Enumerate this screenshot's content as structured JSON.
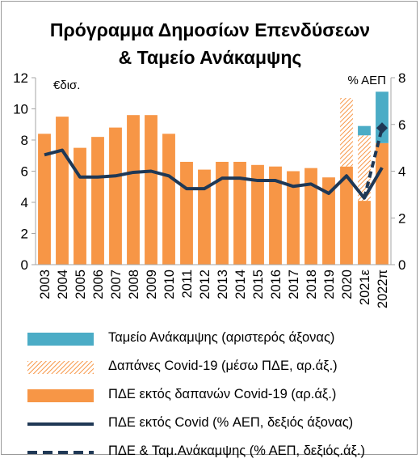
{
  "title_line1": "Πρόγραμμα Δημοσίων Επενδύσεων",
  "title_line2": "& Ταμείο Ανάκαμψης",
  "chart_data": {
    "type": "bar",
    "categories": [
      "2003",
      "2004",
      "2005",
      "2006",
      "2007",
      "2008",
      "2009",
      "2010",
      "2011",
      "2012",
      "2013",
      "2014",
      "2015",
      "2016",
      "2017",
      "2018",
      "2019",
      "2020",
      "2021ε",
      "2022π"
    ],
    "left_axis": {
      "label": "€δισ.",
      "range": [
        0,
        12
      ],
      "ticks": [
        0,
        2,
        4,
        6,
        8,
        10,
        12
      ]
    },
    "right_axis": {
      "label": "% ΑΕΠ",
      "range": [
        0,
        8
      ],
      "ticks": [
        0,
        2,
        4,
        6,
        8
      ]
    },
    "series": [
      {
        "name": "Ταμείο Ανάκαμψης (αριστερός άξονας)",
        "kind": "stacked-bar",
        "axis": "left",
        "color": "#4bacc6",
        "values": [
          0,
          0,
          0,
          0,
          0,
          0,
          0,
          0,
          0,
          0,
          0,
          0,
          0,
          0,
          0,
          0,
          0,
          0,
          0.6,
          3.3
        ]
      },
      {
        "name": "Δαπάνες Covid-19 (μέσω ΠΔΕ, αρ.άξ.)",
        "kind": "stacked-bar",
        "axis": "left",
        "color": "#f79646",
        "pattern": "hatch",
        "values": [
          0,
          0,
          0,
          0,
          0,
          0,
          0,
          0,
          0,
          0,
          0,
          0,
          0,
          0,
          0,
          0,
          0,
          4.4,
          4.2,
          0
        ]
      },
      {
        "name": "ΠΔΕ εκτός δαπανών Covid-19 (αρ.άξ.)",
        "kind": "stacked-bar",
        "axis": "left",
        "color": "#f79646",
        "values": [
          8.4,
          9.5,
          7.5,
          8.2,
          8.8,
          9.6,
          9.6,
          8.4,
          6.6,
          6.1,
          6.6,
          6.6,
          6.4,
          6.3,
          6.0,
          6.2,
          5.6,
          6.3,
          4.1,
          7.8
        ]
      },
      {
        "name": "ΠΔΕ εκτός Covid (% ΑΕΠ, δεξιός άξονας)",
        "kind": "line",
        "axis": "right",
        "color": "#1f3855",
        "values": [
          4.7,
          4.9,
          3.75,
          3.75,
          3.8,
          3.95,
          4.0,
          3.8,
          3.25,
          3.25,
          3.7,
          3.7,
          3.6,
          3.6,
          3.35,
          3.45,
          3.05,
          3.8,
          2.85,
          4.15
        ]
      },
      {
        "name": "ΠΔΕ & Ταμ.Ανάκαμψης (% ΑΕΠ, δεξιός.άξ.)",
        "kind": "dashed-line",
        "axis": "right",
        "color": "#1f3855",
        "values": [
          null,
          null,
          null,
          null,
          null,
          null,
          null,
          null,
          null,
          null,
          null,
          null,
          null,
          null,
          null,
          null,
          null,
          null,
          2.85,
          5.85
        ]
      }
    ],
    "grid": false,
    "legend_position": "bottom"
  }
}
